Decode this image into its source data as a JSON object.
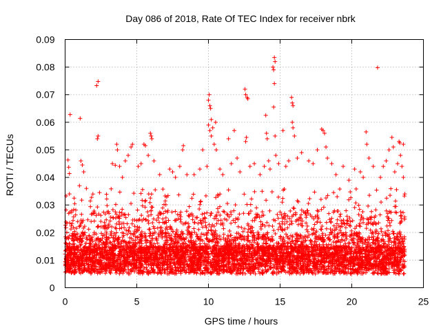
{
  "chart_data": {
    "type": "scatter",
    "title": "Day 086 of 2018, Rate Of TEC Index for receiver nbrk",
    "xlabel": "GPS time / hours",
    "ylabel": "ROTI / TECUs",
    "xlim": [
      0,
      25
    ],
    "ylim": [
      0,
      0.09
    ],
    "xticks": [
      "0",
      "5",
      "10",
      "15",
      "20",
      "25"
    ],
    "yticks": [
      "0",
      "0.01",
      "0.02",
      "0.03",
      "0.04",
      "0.05",
      "0.06",
      "0.07",
      "0.08",
      "0.09"
    ],
    "xtick_values": [
      0,
      5,
      10,
      15,
      20,
      25
    ],
    "ytick_values": [
      0,
      0.01,
      0.02,
      0.03,
      0.04,
      0.05,
      0.06,
      0.07,
      0.08,
      0.09
    ],
    "grid": true,
    "marker": "+",
    "color": "#ff0000",
    "series": [
      {
        "name": "ROTI",
        "points": [
          [
            0.2,
            0.0463
          ],
          [
            0.25,
            0.0437
          ],
          [
            0.3,
            0.0414
          ],
          [
            0.35,
            0.0628
          ],
          [
            0.3,
            0.034
          ],
          [
            1.05,
            0.0614
          ],
          [
            1.1,
            0.046
          ],
          [
            1.2,
            0.0445
          ],
          [
            1.3,
            0.042
          ],
          [
            1.0,
            0.037
          ],
          [
            2.2,
            0.0733
          ],
          [
            2.3,
            0.0748
          ],
          [
            2.3,
            0.055
          ],
          [
            2.25,
            0.054
          ],
          [
            2.4,
            0.0345
          ],
          [
            3.3,
            0.045
          ],
          [
            3.5,
            0.0444
          ],
          [
            3.6,
            0.052
          ],
          [
            3.65,
            0.05
          ],
          [
            3.8,
            0.044
          ],
          [
            4.0,
            0.04
          ],
          [
            4.2,
            0.046
          ],
          [
            4.4,
            0.048
          ],
          [
            4.6,
            0.051
          ],
          [
            4.7,
            0.052
          ],
          [
            5.1,
            0.044
          ],
          [
            5.3,
            0.045
          ],
          [
            5.5,
            0.052
          ],
          [
            5.6,
            0.0515
          ],
          [
            5.8,
            0.048
          ],
          [
            5.95,
            0.056
          ],
          [
            6.0,
            0.055
          ],
          [
            6.05,
            0.054
          ],
          [
            6.2,
            0.046
          ],
          [
            6.6,
            0.041
          ],
          [
            7.3,
            0.043
          ],
          [
            7.5,
            0.042
          ],
          [
            7.7,
            0.04
          ],
          [
            8.0,
            0.044
          ],
          [
            8.2,
            0.05
          ],
          [
            8.25,
            0.0515
          ],
          [
            8.5,
            0.041
          ],
          [
            9.0,
            0.041
          ],
          [
            9.4,
            0.043
          ],
          [
            9.6,
            0.05
          ],
          [
            9.9,
            0.044
          ],
          [
            10.0,
            0.068
          ],
          [
            10.05,
            0.07
          ],
          [
            10.1,
            0.066
          ],
          [
            10.15,
            0.065
          ],
          [
            10.2,
            0.061
          ],
          [
            10.0,
            0.059
          ],
          [
            10.1,
            0.057
          ],
          [
            10.2,
            0.055
          ],
          [
            10.3,
            0.058
          ],
          [
            10.4,
            0.052
          ],
          [
            10.5,
            0.06
          ],
          [
            10.55,
            0.05
          ],
          [
            10.8,
            0.043
          ],
          [
            11.0,
            0.041
          ],
          [
            11.4,
            0.054
          ],
          [
            11.6,
            0.045
          ],
          [
            11.8,
            0.057
          ],
          [
            12.0,
            0.047
          ],
          [
            12.2,
            0.042
          ],
          [
            12.55,
            0.072
          ],
          [
            12.6,
            0.07
          ],
          [
            12.7,
            0.069
          ],
          [
            12.75,
            0.0685
          ],
          [
            12.65,
            0.0545
          ],
          [
            12.6,
            0.053
          ],
          [
            12.9,
            0.044
          ],
          [
            13.2,
            0.045
          ],
          [
            13.6,
            0.041
          ],
          [
            13.9,
            0.044
          ],
          [
            14.0,
            0.0625
          ],
          [
            14.05,
            0.056
          ],
          [
            14.1,
            0.054
          ],
          [
            14.2,
            0.046
          ],
          [
            14.3,
            0.043
          ],
          [
            14.5,
            0.08
          ],
          [
            14.55,
            0.079
          ],
          [
            14.6,
            0.0835
          ],
          [
            14.65,
            0.082
          ],
          [
            14.6,
            0.074
          ],
          [
            14.55,
            0.0655
          ],
          [
            14.65,
            0.055
          ],
          [
            14.7,
            0.048
          ],
          [
            14.9,
            0.045
          ],
          [
            15.2,
            0.057
          ],
          [
            15.4,
            0.044
          ],
          [
            15.6,
            0.046
          ],
          [
            15.8,
            0.069
          ],
          [
            15.85,
            0.067
          ],
          [
            15.9,
            0.066
          ],
          [
            15.85,
            0.06
          ],
          [
            15.9,
            0.058
          ],
          [
            16.0,
            0.055
          ],
          [
            16.2,
            0.047
          ],
          [
            16.5,
            0.049
          ],
          [
            17.0,
            0.046
          ],
          [
            17.3,
            0.045
          ],
          [
            17.6,
            0.05
          ],
          [
            17.9,
            0.0575
          ],
          [
            18.0,
            0.057
          ],
          [
            18.1,
            0.056
          ],
          [
            18.2,
            0.051
          ],
          [
            18.3,
            0.047
          ],
          [
            18.6,
            0.045
          ],
          [
            18.9,
            0.041
          ],
          [
            19.4,
            0.044
          ],
          [
            19.8,
            0.039
          ],
          [
            20.2,
            0.043
          ],
          [
            20.6,
            0.042
          ],
          [
            20.8,
            0.04
          ],
          [
            21.0,
            0.0565
          ],
          [
            21.05,
            0.052
          ],
          [
            21.2,
            0.047
          ],
          [
            21.5,
            0.044
          ],
          [
            21.8,
            0.0798
          ],
          [
            22.0,
            0.04
          ],
          [
            22.2,
            0.044
          ],
          [
            22.4,
            0.046
          ],
          [
            22.6,
            0.05
          ],
          [
            22.8,
            0.0545
          ],
          [
            22.9,
            0.051
          ],
          [
            23.0,
            0.042
          ],
          [
            23.2,
            0.045
          ],
          [
            23.3,
            0.053
          ],
          [
            23.35,
            0.0525
          ],
          [
            23.4,
            0.048
          ],
          [
            23.5,
            0.044
          ],
          [
            23.6,
            0.052
          ],
          [
            23.7,
            0.034
          ],
          [
            23.6,
            0.04
          ]
        ]
      }
    ]
  }
}
